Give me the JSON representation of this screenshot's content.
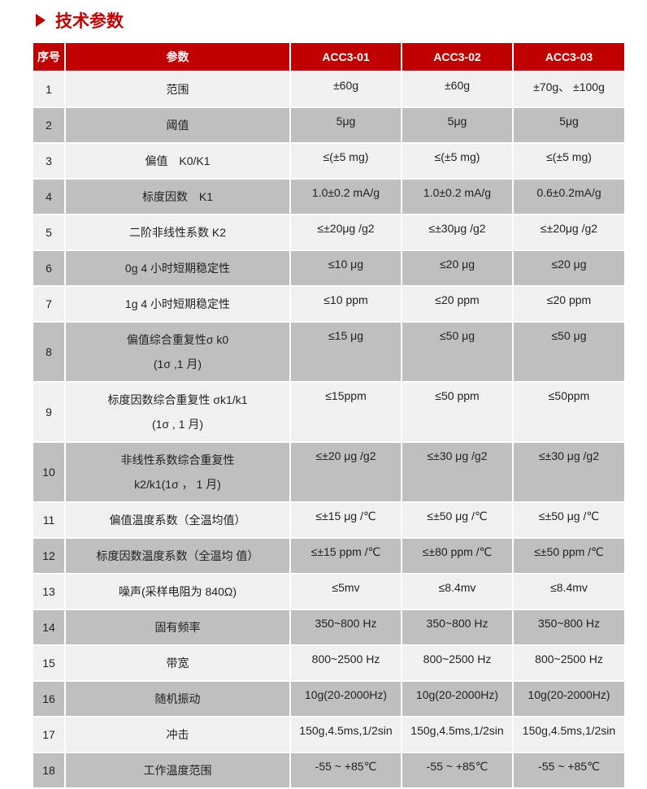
{
  "title": "技术参数",
  "headers": [
    "序号",
    "参数",
    "ACC3-01",
    "ACC3-02",
    "ACC3-03"
  ],
  "rows": [
    {
      "no": "1",
      "param": [
        "范围"
      ],
      "v": [
        "±60g",
        "±60g",
        "±70g、 ±100g"
      ]
    },
    {
      "no": "2",
      "param": [
        "阈值"
      ],
      "v": [
        "5μg",
        "5μg",
        "5μg"
      ]
    },
    {
      "no": "3",
      "param": [
        "偏值　K0/K1"
      ],
      "v": [
        "≤(±5 mg)",
        "≤(±5 mg)",
        "≤(±5 mg)"
      ]
    },
    {
      "no": "4",
      "param": [
        "标度因数　K1"
      ],
      "v": [
        "1.0±0.2 mA/g",
        "1.0±0.2 mA/g",
        "0.6±0.2mA/g"
      ]
    },
    {
      "no": "5",
      "param": [
        "二阶非线性系数 K2"
      ],
      "v": [
        "≤±20μg /g2",
        "≤±30μg /g2",
        "≤±20μg /g2"
      ]
    },
    {
      "no": "6",
      "param": [
        "0g 4  小时短期稳定性"
      ],
      "v": [
        "≤10  μg",
        "≤20  μg",
        "≤20  μg"
      ]
    },
    {
      "no": "7",
      "param": [
        "1g 4   小时短期稳定性"
      ],
      "v": [
        "≤10 ppm",
        "≤20 ppm",
        "≤20 ppm"
      ]
    },
    {
      "no": "8",
      "param": [
        "偏值综合重复性σ k0",
        "(1σ ,1 月)"
      ],
      "v": [
        "≤15  μg",
        "≤50  μg",
        "≤50  μg"
      ]
    },
    {
      "no": "9",
      "param": [
        "标度因数综合重复性  σk1/k1",
        "(1σ , 1 月)"
      ],
      "v": [
        "≤15ppm",
        "≤50 ppm",
        "≤50ppm"
      ]
    },
    {
      "no": "10",
      "param": [
        "非线性系数综合重复性",
        "k2/k1(1σ ，  1 月)"
      ],
      "v": [
        "≤±20  μg /g2",
        "≤±30  μg /g2",
        "≤±30  μg /g2"
      ]
    },
    {
      "no": "11",
      "param": [
        "偏值温度系数（全温均值）"
      ],
      "v": [
        "≤±15  μg /℃",
        "≤±50  μg /℃",
        "≤±50  μg /℃"
      ]
    },
    {
      "no": "12",
      "param": [
        "标度因数温度系数（全温均  值）"
      ],
      "v": [
        "≤±15 ppm /℃",
        "≤±80 ppm /℃",
        "≤±50 ppm /℃"
      ]
    },
    {
      "no": "13",
      "param": [
        "噪声(采样电阻为  840Ω)"
      ],
      "v": [
        "≤5mv",
        "≤8.4mv",
        "≤8.4mv"
      ]
    },
    {
      "no": "14",
      "param": [
        "固有频率"
      ],
      "v": [
        "350~800 Hz",
        "350~800 Hz",
        "350~800 Hz"
      ]
    },
    {
      "no": "15",
      "param": [
        "带宽"
      ],
      "v": [
        "800~2500 Hz",
        "800~2500 Hz",
        "800~2500 Hz"
      ]
    },
    {
      "no": "16",
      "param": [
        "随机振动"
      ],
      "v": [
        "10g(20-2000Hz)",
        "10g(20-2000Hz)",
        "10g(20-2000Hz)"
      ]
    },
    {
      "no": "17",
      "param": [
        "冲击"
      ],
      "v": [
        "150g,4.5ms,1/2sin",
        "150g,4.5ms,1/2sin",
        "150g,4.5ms,1/2sin"
      ]
    },
    {
      "no": "18",
      "param": [
        "工作温度范围"
      ],
      "v": [
        "-55 ~ +85℃",
        "-55 ~ +85℃",
        "-55 ~ +85℃"
      ]
    }
  ],
  "colors": {
    "accent": "#c00000",
    "row_light": "#f0f0f0",
    "row_dark": "#bfbfbf"
  }
}
